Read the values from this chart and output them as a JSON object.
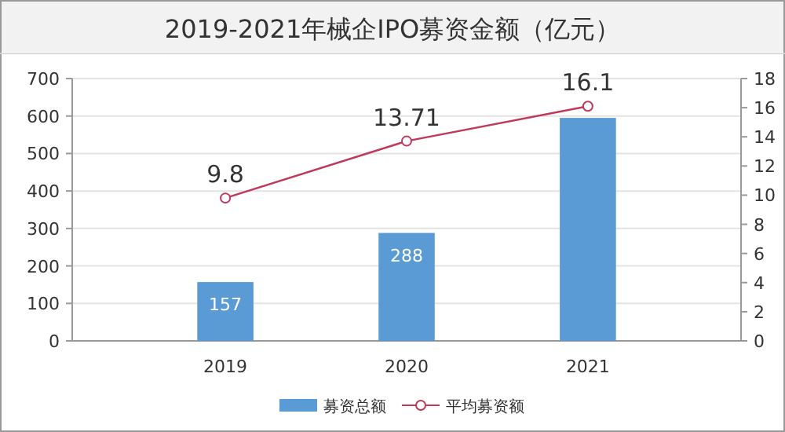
{
  "chart_data": {
    "type": "bar",
    "title": "2019-2021年械企IPO募资金额（亿元）",
    "categories": [
      "2019",
      "2020",
      "2021"
    ],
    "series": [
      {
        "name": "募资总额",
        "color": "#5b9bd5",
        "values": [
          157,
          288,
          595
        ],
        "value_labels": [
          "157",
          "288",
          null
        ]
      },
      {
        "name": "平均募资额",
        "type": "line",
        "axis": "y2",
        "color": "#c0385a",
        "marker": "circle",
        "values": [
          9.8,
          13.71,
          16.1
        ],
        "value_labels": [
          "9.8",
          "13.71",
          "16.1"
        ]
      }
    ],
    "ylim": [
      0,
      700
    ],
    "yticks": [
      0,
      100,
      200,
      300,
      400,
      500,
      600,
      700
    ],
    "y2lim": [
      0,
      18
    ],
    "y2ticks": [
      0,
      2,
      4,
      6,
      8,
      10,
      12,
      14,
      16,
      18
    ],
    "grid": "y",
    "legend": "bottom"
  }
}
